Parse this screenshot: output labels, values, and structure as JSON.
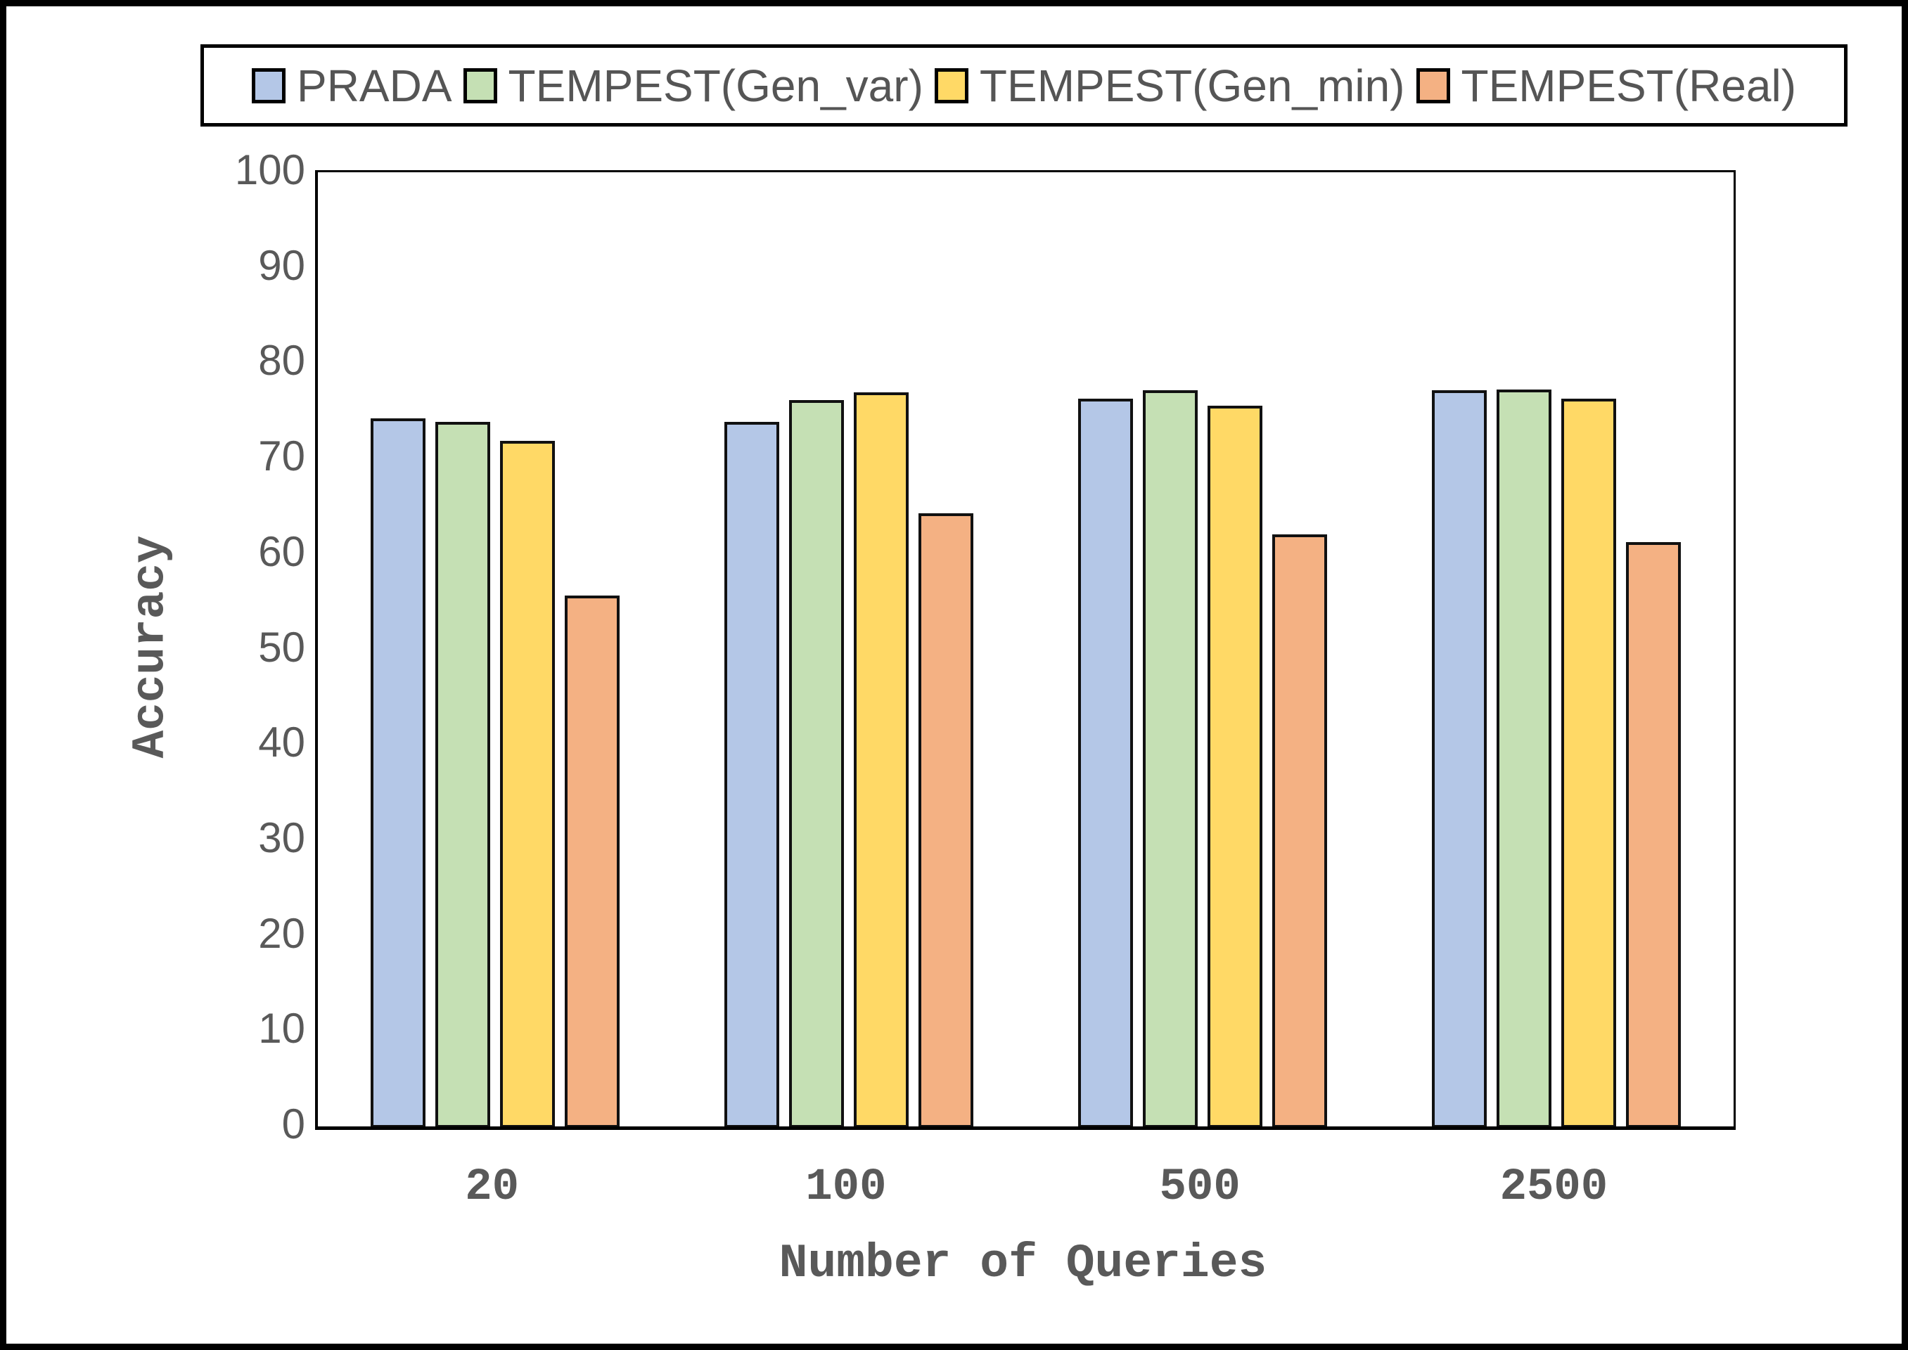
{
  "axes": {
    "y_title": "Accuracy",
    "x_title": "Number of Queries",
    "yticks": [
      0,
      10,
      20,
      30,
      40,
      50,
      60,
      70,
      80,
      90,
      100
    ]
  },
  "colors": {
    "prada_blue": "#B4C7E7",
    "tempest_gen_var_green": "#C5E0B4",
    "tempest_gen_min_yellow": "#FFD966",
    "tempest_real_orange": "#F4B183",
    "bar_border": "#111111",
    "axis_text": "#595959",
    "frame": "#000000"
  },
  "chart_data": {
    "type": "bar",
    "title": "",
    "xlabel": "Number of Queries",
    "ylabel": "Accuracy",
    "ylim": [
      0,
      100
    ],
    "yticks": [
      0,
      10,
      20,
      30,
      40,
      50,
      60,
      70,
      80,
      90,
      100
    ],
    "grid": false,
    "legend_position": "top",
    "categories": [
      "20",
      "100",
      "500",
      "2500"
    ],
    "series": [
      {
        "name": "PRADA",
        "color": "#B4C7E7",
        "values": [
          73.8,
          73.4,
          75.8,
          76.7
        ]
      },
      {
        "name": "TEMPEST(Gen_var)",
        "color": "#C5E0B4",
        "values": [
          73.4,
          75.7,
          76.7,
          76.8
        ]
      },
      {
        "name": "TEMPEST(Gen_min)",
        "color": "#FFD966",
        "values": [
          71.4,
          76.5,
          75.1,
          75.8
        ]
      },
      {
        "name": "TEMPEST(Real)",
        "color": "#F4B183",
        "values": [
          55.2,
          63.8,
          61.6,
          60.8
        ]
      }
    ]
  }
}
